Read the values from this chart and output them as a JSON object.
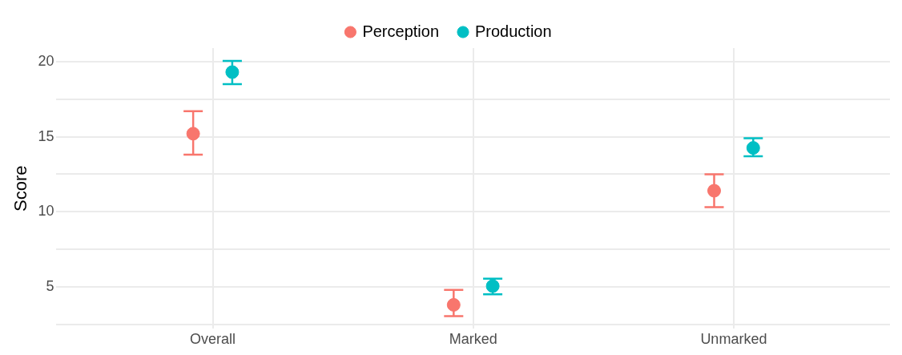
{
  "chart_data": {
    "type": "scatter",
    "ylabel": "Score",
    "categories": [
      "Overall",
      "Marked",
      "Unmarked"
    ],
    "series": [
      {
        "name": "Perception",
        "color": "#f8766d",
        "values": [
          15.2,
          3.8,
          11.4
        ],
        "errors": [
          [
            13.8,
            16.7
          ],
          [
            3.05,
            4.8
          ],
          [
            10.3,
            12.5
          ]
        ]
      },
      {
        "name": "Production",
        "color": "#00bfc4",
        "values": [
          19.3,
          5.05,
          14.25
        ],
        "errors": [
          [
            18.5,
            20.05
          ],
          [
            4.5,
            5.55
          ],
          [
            13.7,
            14.9
          ]
        ]
      }
    ],
    "ylim": [
      2.2,
      20.9
    ],
    "yticks": [
      {
        "value": 2.5,
        "label": null
      },
      5,
      {
        "value": 7.5,
        "label": null
      },
      10,
      {
        "value": 12.5,
        "label": null
      },
      15,
      {
        "value": 17.5,
        "label": null
      },
      20
    ],
    "grid": true,
    "legend": "top",
    "marker": "circle"
  }
}
